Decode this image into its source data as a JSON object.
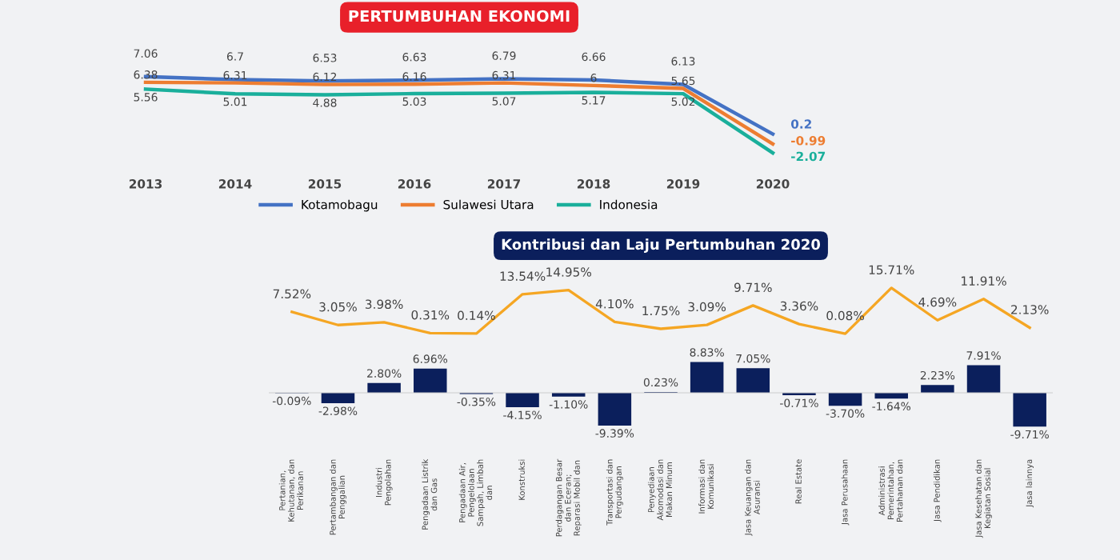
{
  "chart_data": [
    {
      "type": "line",
      "title": "PERTUMBUHAN EKONOMI",
      "categories": [
        "2013",
        "2014",
        "2015",
        "2016",
        "2017",
        "2018",
        "2019",
        "2020"
      ],
      "data_labels": true,
      "legend": "bottom",
      "grid": false,
      "marker": "none",
      "line_style": "solid",
      "tick_labels": "x",
      "series": [
        {
          "name": "Kotamobagu",
          "color": "#4472c4",
          "values": [
            7.06,
            6.7,
            6.53,
            6.63,
            6.79,
            6.66,
            6.13,
            0.2
          ]
        },
        {
          "name": "Sulawesi Utara",
          "color": "#ed7d31",
          "values": [
            6.38,
            6.31,
            6.12,
            6.16,
            6.31,
            6.0,
            5.65,
            -0.99
          ]
        },
        {
          "name": "Indonesia",
          "color": "#1aaf9b",
          "values": [
            5.56,
            5.01,
            4.88,
            5.03,
            5.07,
            5.17,
            5.02,
            -2.07
          ]
        }
      ]
    },
    {
      "type": "line",
      "title": "Kontribusi dan Laju Pertumbuhan 2020",
      "tick_labels": false,
      "legend": false,
      "grid": false,
      "categories": [
        null,
        null,
        null,
        null,
        null,
        null,
        null,
        null,
        null,
        null,
        null,
        null,
        null,
        null,
        null,
        null,
        null
      ],
      "series": [
        {
          "color": "#f5a623",
          "values": [
            7.52,
            3.05,
            3.98,
            0.31,
            0.14,
            13.54,
            14.95,
            4.1,
            1.75,
            3.09,
            9.71,
            3.36,
            0.08,
            15.71,
            4.69,
            11.91,
            2.13
          ],
          "value_labels": [
            "7.52%",
            "3.05%",
            "3.98%",
            "0.31%",
            "0.14%",
            "13.54%",
            "14.95%",
            "4.10%",
            "1.75%",
            "3.09%",
            "9.71%",
            "3.36%",
            "0.08%",
            "15.71%",
            "4.69%",
            "11.91%",
            "2.13%"
          ]
        }
      ]
    },
    {
      "type": "bar",
      "tick_labels": "x",
      "legend": false,
      "grid": false,
      "categories": [
        "Pertanian,\nKehutanan, dan\nPerikanan",
        "Pertambangan dan\nPenggalian",
        "Industri\nPengolahan",
        "Pengadaan Listrik\ndan Gas",
        "Pengadaan Air,\nPengelolaan\nSampah, Limbah\ndan",
        "Konstruksi",
        "Perdagangan Besar\ndan Eceran;\nReparasi Mobil dan",
        "Transportasi dan\nPergudangan",
        "Penyediaan\nAkomodasi dan\nMakan Minum",
        "Informasi dan\nKomunikasi",
        "Jasa Keuangan dan\nAsuransi",
        "Real Estate",
        "Jasa Perusahaan",
        "Administrasi\nPemerintahan,\nPertahanan dan",
        "Jasa Pendidikan",
        "Jasa Kesehatan dan\nKegiatan Sosial",
        "Jasa lainnya"
      ],
      "series": [
        {
          "color": "#0b1f5c",
          "values": [
            -0.09,
            -2.98,
            2.8,
            6.96,
            -0.35,
            -4.15,
            -1.1,
            -9.39,
            0.23,
            8.83,
            7.05,
            -0.71,
            -3.7,
            -1.64,
            2.23,
            7.91,
            -9.71
          ],
          "value_labels": [
            "-0.09%",
            "-2.98%",
            "2.80%",
            "6.96%",
            "-0.35%",
            "-4.15%",
            "-1.10%",
            "-9.39%",
            "0.23%",
            "8.83%",
            "7.05%",
            "-0.71%",
            "-3.70%",
            "-1.64%",
            "2.23%",
            "7.91%",
            "-9.71%"
          ]
        }
      ]
    }
  ]
}
